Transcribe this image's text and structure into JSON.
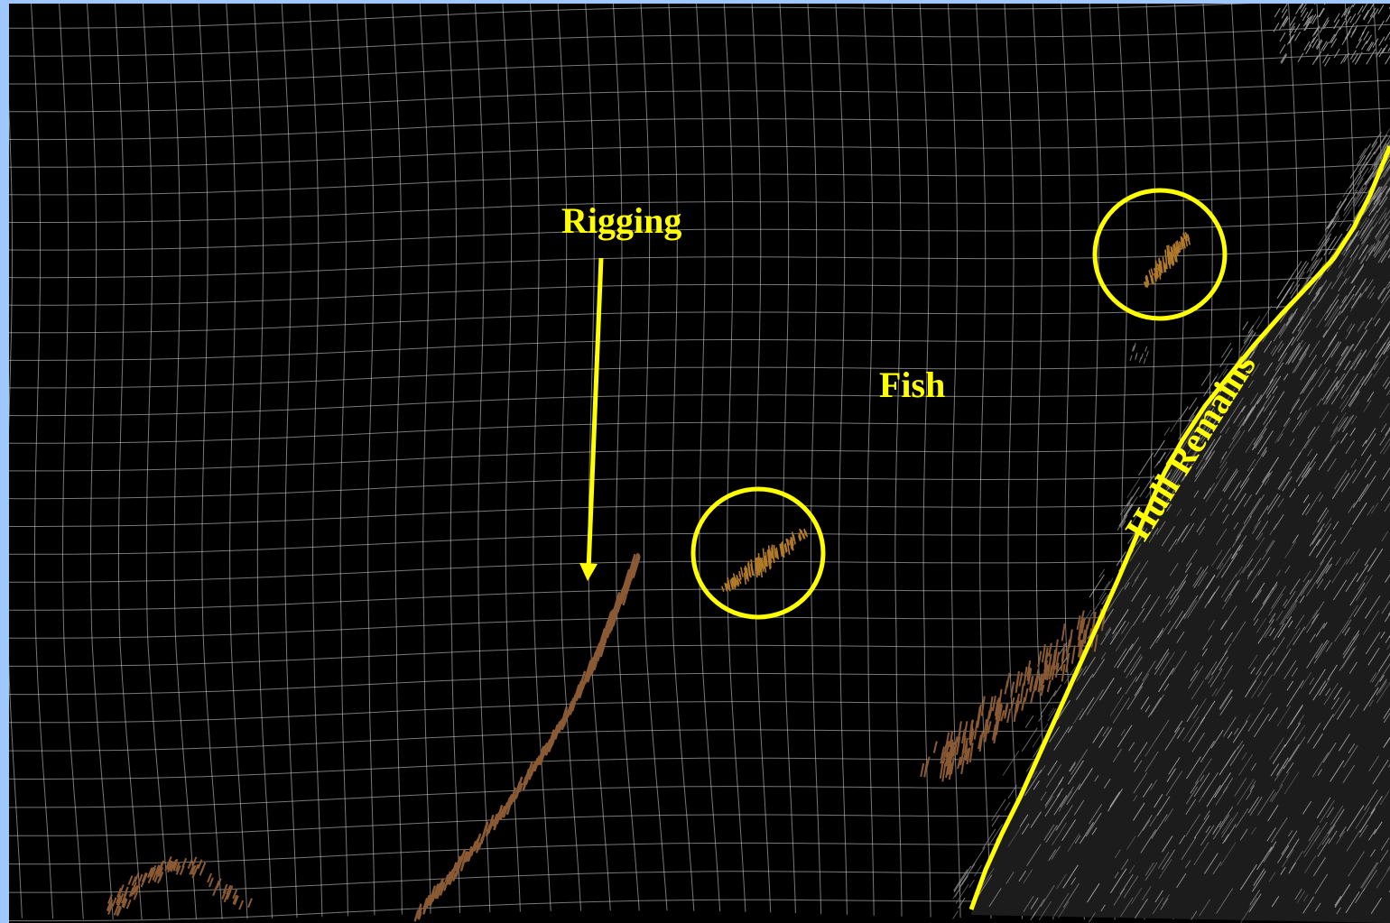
{
  "annotations": {
    "rigging_label": "Rigging",
    "fish_label": "Fish",
    "hull_label": "Hull Remains"
  },
  "colors": {
    "frame_border": "#9ec8ff",
    "background": "#000000",
    "grid": "#d8d8d8",
    "annotation": "#ffff00",
    "rigging_points": "#8a5a34",
    "fish_points": "#b07a2a",
    "hull_points": "#8c8c8c"
  }
}
